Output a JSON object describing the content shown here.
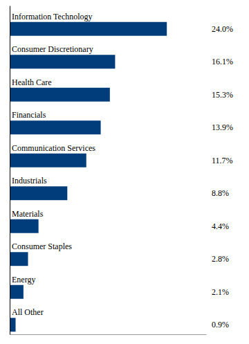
{
  "chart_data": {
    "type": "bar",
    "orientation": "horizontal",
    "categories": [
      "Information Technology",
      "Consumer Discretionary",
      "Health Care",
      "Financials",
      "Communication Services",
      "Industrials",
      "Materials",
      "Consumer Staples",
      "Energy",
      "All Other"
    ],
    "values": [
      24.0,
      16.1,
      15.3,
      13.9,
      11.7,
      8.8,
      4.4,
      2.8,
      2.1,
      0.9
    ],
    "value_labels": [
      "24.0%",
      "16.1%",
      "15.3%",
      "13.9%",
      "11.7%",
      "8.8%",
      "4.4%",
      "2.8%",
      "2.1%",
      "0.9%"
    ],
    "color": "#003d7a",
    "xlim": [
      0,
      30
    ],
    "tick_labels": false,
    "data_labels": true,
    "grid": false
  }
}
